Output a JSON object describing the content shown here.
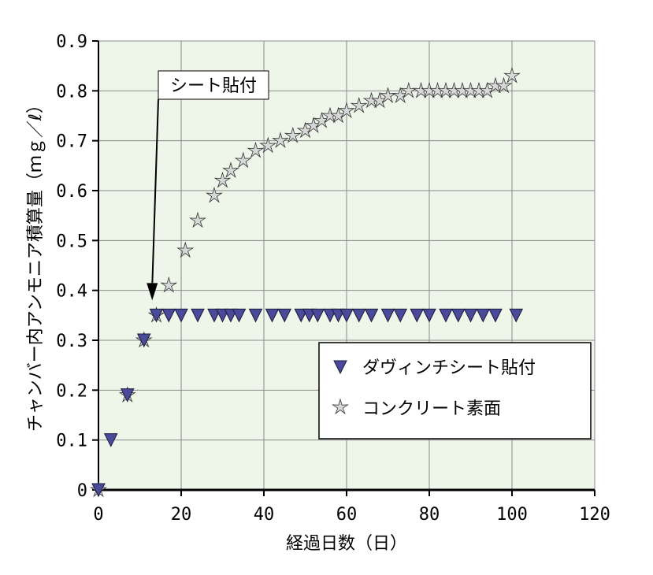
{
  "chart_data": {
    "type": "scatter",
    "xlabel": "経過日数（日）",
    "ylabel": "チャンバー内アンモニア積算量（ｍｇ／ℓ）",
    "xlim": [
      0,
      120
    ],
    "ylim": [
      0,
      0.9
    ],
    "xticks": [
      0,
      20,
      40,
      60,
      80,
      100,
      120
    ],
    "yticks": [
      0,
      0.1,
      0.2,
      0.3,
      0.4,
      0.5,
      0.6,
      0.7,
      0.8,
      0.9
    ],
    "xtick_labels": [
      "0",
      "20",
      "40",
      "60",
      "80",
      "100",
      "120"
    ],
    "ytick_labels": [
      "0",
      "0.1",
      "0.2",
      "0.3",
      "0.4",
      "0.5",
      "0.6",
      "0.7",
      "0.8",
      "0.9"
    ],
    "grid": true,
    "plot_background": "#eef5e9",
    "legend_position": "right",
    "series": [
      {
        "name": "ダヴィンチシート貼付",
        "marker": "triangle-down",
        "color": "#4a4a9a",
        "x": [
          0,
          3,
          7,
          11,
          14,
          17,
          20,
          24,
          28,
          30,
          32,
          34,
          38,
          42,
          45,
          49,
          51,
          53,
          56,
          58,
          60,
          63,
          66,
          70,
          73,
          77,
          80,
          84,
          87,
          90,
          93,
          96,
          101
        ],
        "y": [
          0,
          0.1,
          0.19,
          0.3,
          0.35,
          0.35,
          0.35,
          0.35,
          0.35,
          0.35,
          0.35,
          0.35,
          0.35,
          0.35,
          0.35,
          0.35,
          0.35,
          0.35,
          0.35,
          0.35,
          0.35,
          0.35,
          0.35,
          0.35,
          0.35,
          0.35,
          0.35,
          0.35,
          0.35,
          0.35,
          0.35,
          0.35,
          0.35
        ]
      },
      {
        "name": "コンクリート素面",
        "marker": "star",
        "color": "#d8d8d8",
        "x": [
          0,
          7,
          11,
          14,
          17,
          21,
          24,
          28,
          30,
          32,
          35,
          38,
          41,
          44,
          47,
          50,
          52,
          54,
          56,
          58,
          60,
          63,
          66,
          68,
          70,
          73,
          75,
          78,
          80,
          82,
          84,
          86,
          88,
          90,
          92,
          94,
          96,
          98,
          100
        ],
        "y": [
          0,
          0.19,
          0.3,
          0.35,
          0.41,
          0.48,
          0.54,
          0.59,
          0.62,
          0.64,
          0.66,
          0.68,
          0.69,
          0.7,
          0.71,
          0.72,
          0.73,
          0.74,
          0.75,
          0.75,
          0.76,
          0.77,
          0.78,
          0.78,
          0.79,
          0.79,
          0.8,
          0.8,
          0.8,
          0.8,
          0.8,
          0.8,
          0.8,
          0.8,
          0.8,
          0.8,
          0.81,
          0.81,
          0.83
        ]
      }
    ],
    "annotation": {
      "text": "シート貼付",
      "arrow_to": [
        13,
        0.38
      ]
    }
  }
}
